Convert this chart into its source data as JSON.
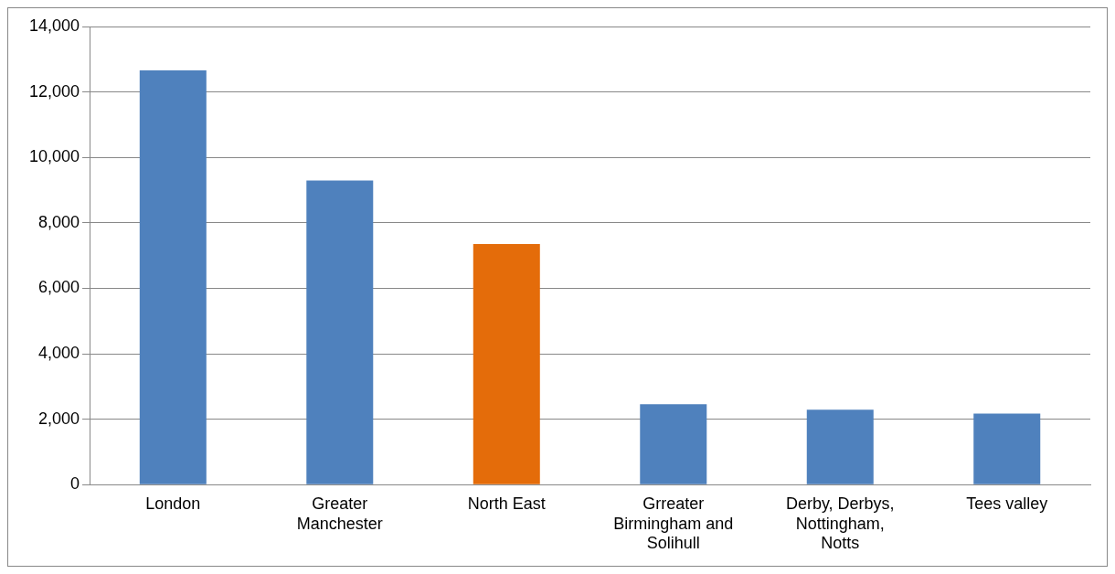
{
  "chart_data": {
    "type": "bar",
    "categories": [
      "London",
      "Greater Manchester",
      "North East",
      "Grreater Birmingham and Solihull",
      "Derby, Derbys, Nottingham, Notts",
      "Tees valley"
    ],
    "values": [
      12660,
      9290,
      7350,
      2460,
      2290,
      2170
    ],
    "colors": [
      "#4f81bd",
      "#4f81bd",
      "#e46c0a",
      "#4f81bd",
      "#4f81bd",
      "#4f81bd"
    ],
    "ylim": [
      0,
      14000
    ],
    "yticks": [
      {
        "value": 0,
        "label": "0"
      },
      {
        "value": 2000,
        "label": "2,000"
      },
      {
        "value": 4000,
        "label": "4,000"
      },
      {
        "value": 6000,
        "label": "6,000"
      },
      {
        "value": 8000,
        "label": "8,000"
      },
      {
        "value": 10000,
        "label": "10,000"
      },
      {
        "value": 12000,
        "label": "12,000"
      },
      {
        "value": 14000,
        "label": "14,000"
      }
    ],
    "grid": "y",
    "legend": false
  }
}
